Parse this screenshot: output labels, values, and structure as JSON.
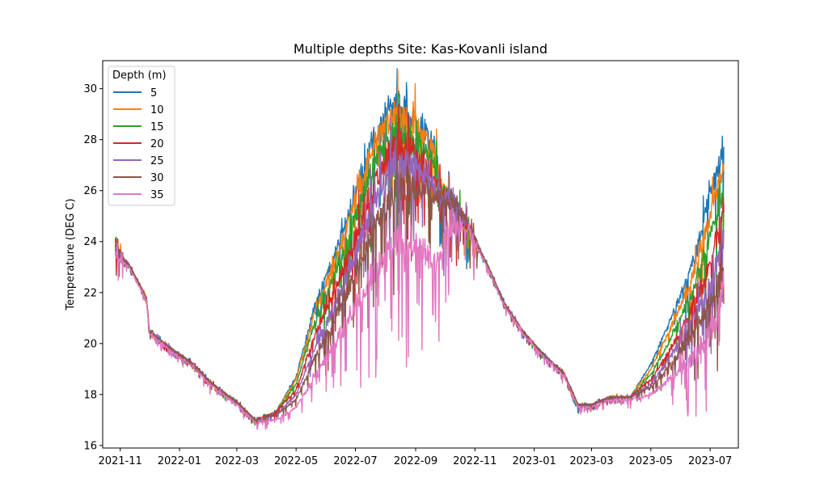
{
  "chart_data": {
    "type": "line",
    "title": "Multiple depths Site: Kas-Kovanli island",
    "xlabel": "",
    "ylabel": "Temperature (DEG C)",
    "xlim": [
      "2021-10-14",
      "2023-07-30"
    ],
    "ylim": [
      15.9,
      31.1
    ],
    "yticks": [
      16,
      18,
      20,
      22,
      24,
      26,
      28,
      30
    ],
    "xticks": [
      "2021-11",
      "2022-01",
      "2022-03",
      "2022-05",
      "2022-07",
      "2022-09",
      "2022-11",
      "2023-01",
      "2023-03",
      "2023-05",
      "2023-07"
    ],
    "grid": false,
    "legend": {
      "title": "Depth (m)",
      "placement": "top-left"
    },
    "series": [
      {
        "name": "5",
        "color": "#1f77b4",
        "amp": 1.0,
        "points": [
          [
            "2021-10-27",
            23.7
          ],
          [
            "2021-11-10",
            23.1
          ],
          [
            "2021-11-28",
            21.8
          ],
          [
            "2021-12-01",
            20.5
          ],
          [
            "2021-12-20",
            19.9
          ],
          [
            "2022-01-15",
            19.2
          ],
          [
            "2022-02-01",
            18.5
          ],
          [
            "2022-03-01",
            17.7
          ],
          [
            "2022-03-20",
            17.0
          ],
          [
            "2022-04-10",
            17.3
          ],
          [
            "2022-05-01",
            18.7
          ],
          [
            "2022-05-20",
            21.5
          ],
          [
            "2022-06-10",
            23.5
          ],
          [
            "2022-07-01",
            26.0
          ],
          [
            "2022-07-20",
            28.2
          ],
          [
            "2022-08-10",
            29.5
          ],
          [
            "2022-08-25",
            29.0
          ],
          [
            "2022-09-10",
            28.5
          ],
          [
            "2022-09-23",
            27.5
          ],
          [
            "2022-09-28",
            26.0
          ],
          [
            "2022-10-10",
            25.6
          ],
          [
            "2022-10-25",
            24.6
          ],
          [
            "2022-11-15",
            23.0
          ],
          [
            "2022-12-01",
            21.6
          ],
          [
            "2022-12-20",
            20.5
          ],
          [
            "2023-01-10",
            19.6
          ],
          [
            "2023-02-01",
            18.8
          ],
          [
            "2023-02-15",
            17.5
          ],
          [
            "2023-03-01",
            17.6
          ],
          [
            "2023-03-20",
            17.9
          ],
          [
            "2023-04-10",
            17.9
          ],
          [
            "2023-05-01",
            19.2
          ],
          [
            "2023-05-20",
            20.8
          ],
          [
            "2023-06-10",
            22.8
          ],
          [
            "2023-06-25",
            25.0
          ],
          [
            "2023-07-10",
            27.0
          ],
          [
            "2023-07-15",
            27.5
          ]
        ]
      },
      {
        "name": "10",
        "color": "#ff7f0e",
        "amp": 0.95,
        "points": [
          [
            "2021-10-27",
            23.7
          ],
          [
            "2021-11-10",
            23.1
          ],
          [
            "2021-11-28",
            21.8
          ],
          [
            "2021-12-01",
            20.5
          ],
          [
            "2021-12-20",
            19.9
          ],
          [
            "2022-01-15",
            19.2
          ],
          [
            "2022-02-01",
            18.5
          ],
          [
            "2022-03-01",
            17.7
          ],
          [
            "2022-03-20",
            17.0
          ],
          [
            "2022-04-10",
            17.3
          ],
          [
            "2022-05-01",
            18.6
          ],
          [
            "2022-05-20",
            21.2
          ],
          [
            "2022-06-10",
            23.2
          ],
          [
            "2022-07-01",
            25.7
          ],
          [
            "2022-07-20",
            27.8
          ],
          [
            "2022-08-10",
            29.0
          ],
          [
            "2022-08-25",
            28.7
          ],
          [
            "2022-09-10",
            28.2
          ],
          [
            "2022-09-23",
            27.2
          ],
          [
            "2022-09-28",
            26.0
          ],
          [
            "2022-10-10",
            25.6
          ],
          [
            "2022-10-25",
            24.6
          ],
          [
            "2022-11-15",
            23.0
          ],
          [
            "2022-12-01",
            21.6
          ],
          [
            "2022-12-20",
            20.5
          ],
          [
            "2023-01-10",
            19.6
          ],
          [
            "2023-02-01",
            18.8
          ],
          [
            "2023-02-15",
            17.6
          ],
          [
            "2023-03-01",
            17.6
          ],
          [
            "2023-03-20",
            17.9
          ],
          [
            "2023-04-10",
            17.9
          ],
          [
            "2023-05-01",
            19.0
          ],
          [
            "2023-05-20",
            20.5
          ],
          [
            "2023-06-10",
            22.3
          ],
          [
            "2023-06-25",
            24.2
          ],
          [
            "2023-07-10",
            26.3
          ],
          [
            "2023-07-15",
            26.8
          ]
        ]
      },
      {
        "name": "15",
        "color": "#2ca02c",
        "amp": 0.95,
        "points": [
          [
            "2021-10-27",
            23.7
          ],
          [
            "2021-11-10",
            23.1
          ],
          [
            "2021-11-28",
            21.8
          ],
          [
            "2021-12-01",
            20.5
          ],
          [
            "2021-12-20",
            19.9
          ],
          [
            "2022-01-15",
            19.2
          ],
          [
            "2022-02-01",
            18.5
          ],
          [
            "2022-03-01",
            17.7
          ],
          [
            "2022-03-20",
            17.0
          ],
          [
            "2022-04-10",
            17.3
          ],
          [
            "2022-05-01",
            18.4
          ],
          [
            "2022-05-20",
            20.8
          ],
          [
            "2022-06-10",
            22.7
          ],
          [
            "2022-07-01",
            25.0
          ],
          [
            "2022-07-20",
            27.0
          ],
          [
            "2022-08-10",
            28.5
          ],
          [
            "2022-08-25",
            28.2
          ],
          [
            "2022-09-10",
            27.7
          ],
          [
            "2022-09-23",
            26.8
          ],
          [
            "2022-09-28",
            26.0
          ],
          [
            "2022-10-10",
            25.6
          ],
          [
            "2022-10-25",
            24.6
          ],
          [
            "2022-11-15",
            23.0
          ],
          [
            "2022-12-01",
            21.6
          ],
          [
            "2022-12-20",
            20.5
          ],
          [
            "2023-01-10",
            19.6
          ],
          [
            "2023-02-01",
            18.8
          ],
          [
            "2023-02-15",
            17.6
          ],
          [
            "2023-03-01",
            17.6
          ],
          [
            "2023-03-20",
            17.9
          ],
          [
            "2023-04-10",
            17.9
          ],
          [
            "2023-05-01",
            18.8
          ],
          [
            "2023-05-20",
            20.1
          ],
          [
            "2023-06-10",
            21.8
          ],
          [
            "2023-06-25",
            23.4
          ],
          [
            "2023-07-10",
            25.3
          ],
          [
            "2023-07-15",
            25.8
          ]
        ]
      },
      {
        "name": "20",
        "color": "#d62728",
        "amp": 1.0,
        "points": [
          [
            "2021-10-27",
            23.7
          ],
          [
            "2021-11-10",
            23.1
          ],
          [
            "2021-11-28",
            21.8
          ],
          [
            "2021-12-01",
            20.5
          ],
          [
            "2021-12-20",
            19.9
          ],
          [
            "2022-01-15",
            19.2
          ],
          [
            "2022-02-01",
            18.5
          ],
          [
            "2022-03-01",
            17.7
          ],
          [
            "2022-03-20",
            17.0
          ],
          [
            "2022-04-10",
            17.3
          ],
          [
            "2022-05-01",
            18.2
          ],
          [
            "2022-05-20",
            20.3
          ],
          [
            "2022-06-10",
            22.1
          ],
          [
            "2022-07-01",
            24.3
          ],
          [
            "2022-07-20",
            26.3
          ],
          [
            "2022-08-10",
            27.8
          ],
          [
            "2022-08-25",
            27.7
          ],
          [
            "2022-09-10",
            27.2
          ],
          [
            "2022-09-23",
            26.4
          ],
          [
            "2022-09-28",
            25.9
          ],
          [
            "2022-10-10",
            25.6
          ],
          [
            "2022-10-25",
            24.6
          ],
          [
            "2022-11-15",
            23.0
          ],
          [
            "2022-12-01",
            21.6
          ],
          [
            "2022-12-20",
            20.5
          ],
          [
            "2023-01-10",
            19.6
          ],
          [
            "2023-02-01",
            18.8
          ],
          [
            "2023-02-15",
            17.6
          ],
          [
            "2023-03-01",
            17.6
          ],
          [
            "2023-03-20",
            17.9
          ],
          [
            "2023-04-10",
            17.9
          ],
          [
            "2023-05-01",
            18.6
          ],
          [
            "2023-05-20",
            19.7
          ],
          [
            "2023-06-10",
            21.2
          ],
          [
            "2023-06-25",
            22.5
          ],
          [
            "2023-07-10",
            24.5
          ],
          [
            "2023-07-15",
            25.5
          ]
        ]
      },
      {
        "name": "25",
        "color": "#9467bd",
        "amp": 1.05,
        "points": [
          [
            "2021-10-27",
            23.7
          ],
          [
            "2021-11-10",
            23.1
          ],
          [
            "2021-11-28",
            21.8
          ],
          [
            "2021-12-01",
            20.5
          ],
          [
            "2021-12-20",
            19.9
          ],
          [
            "2022-01-15",
            19.2
          ],
          [
            "2022-02-01",
            18.5
          ],
          [
            "2022-03-01",
            17.7
          ],
          [
            "2022-03-20",
            17.0
          ],
          [
            "2022-04-10",
            17.2
          ],
          [
            "2022-05-01",
            18.0
          ],
          [
            "2022-05-20",
            19.8
          ],
          [
            "2022-06-10",
            21.5
          ],
          [
            "2022-07-01",
            23.5
          ],
          [
            "2022-07-20",
            25.5
          ],
          [
            "2022-08-10",
            27.0
          ],
          [
            "2022-08-25",
            27.0
          ],
          [
            "2022-09-10",
            26.7
          ],
          [
            "2022-09-23",
            26.0
          ],
          [
            "2022-09-28",
            25.8
          ],
          [
            "2022-10-10",
            25.6
          ],
          [
            "2022-10-25",
            24.6
          ],
          [
            "2022-11-15",
            23.0
          ],
          [
            "2022-12-01",
            21.6
          ],
          [
            "2022-12-20",
            20.5
          ],
          [
            "2023-01-10",
            19.6
          ],
          [
            "2023-02-01",
            18.8
          ],
          [
            "2023-02-15",
            17.6
          ],
          [
            "2023-03-01",
            17.6
          ],
          [
            "2023-03-20",
            17.9
          ],
          [
            "2023-04-10",
            17.9
          ],
          [
            "2023-05-01",
            18.4
          ],
          [
            "2023-05-20",
            19.4
          ],
          [
            "2023-06-10",
            20.7
          ],
          [
            "2023-06-25",
            21.8
          ],
          [
            "2023-07-10",
            23.4
          ],
          [
            "2023-07-15",
            24.2
          ]
        ]
      },
      {
        "name": "30",
        "color": "#8c564b",
        "amp": 1.1,
        "points": [
          [
            "2021-10-27",
            23.7
          ],
          [
            "2021-11-10",
            23.1
          ],
          [
            "2021-11-28",
            21.8
          ],
          [
            "2021-12-01",
            20.5
          ],
          [
            "2021-12-20",
            19.9
          ],
          [
            "2022-01-15",
            19.2
          ],
          [
            "2022-02-01",
            18.5
          ],
          [
            "2022-03-01",
            17.7
          ],
          [
            "2022-03-20",
            17.0
          ],
          [
            "2022-04-10",
            17.2
          ],
          [
            "2022-05-01",
            17.8
          ],
          [
            "2022-05-20",
            19.4
          ],
          [
            "2022-06-10",
            21.0
          ],
          [
            "2022-07-01",
            22.8
          ],
          [
            "2022-07-20",
            24.6
          ],
          [
            "2022-08-10",
            26.1
          ],
          [
            "2022-08-25",
            26.3
          ],
          [
            "2022-09-10",
            26.1
          ],
          [
            "2022-09-23",
            25.7
          ],
          [
            "2022-09-28",
            25.7
          ],
          [
            "2022-10-10",
            25.6
          ],
          [
            "2022-10-25",
            24.6
          ],
          [
            "2022-11-15",
            23.0
          ],
          [
            "2022-12-01",
            21.6
          ],
          [
            "2022-12-20",
            20.5
          ],
          [
            "2023-01-10",
            19.6
          ],
          [
            "2023-02-01",
            18.8
          ],
          [
            "2023-02-15",
            17.6
          ],
          [
            "2023-03-01",
            17.6
          ],
          [
            "2023-03-20",
            17.9
          ],
          [
            "2023-04-10",
            17.9
          ],
          [
            "2023-05-01",
            18.3
          ],
          [
            "2023-05-20",
            19.1
          ],
          [
            "2023-06-10",
            20.2
          ],
          [
            "2023-06-25",
            21.2
          ],
          [
            "2023-07-10",
            22.6
          ],
          [
            "2023-07-15",
            23.5
          ]
        ]
      },
      {
        "name": "35",
        "color": "#e377c2",
        "amp": 1.25,
        "points": [
          [
            "2021-10-27",
            23.6
          ],
          [
            "2021-11-10",
            23.0
          ],
          [
            "2021-11-28",
            21.7
          ],
          [
            "2021-12-01",
            20.4
          ],
          [
            "2021-12-20",
            19.8
          ],
          [
            "2022-01-15",
            19.1
          ],
          [
            "2022-02-01",
            18.4
          ],
          [
            "2022-03-01",
            17.6
          ],
          [
            "2022-03-20",
            16.9
          ],
          [
            "2022-04-10",
            17.0
          ],
          [
            "2022-05-01",
            17.5
          ],
          [
            "2022-05-20",
            18.7
          ],
          [
            "2022-06-10",
            20.0
          ],
          [
            "2022-07-01",
            21.5
          ],
          [
            "2022-07-20",
            22.8
          ],
          [
            "2022-08-10",
            24.0
          ],
          [
            "2022-08-25",
            24.0
          ],
          [
            "2022-09-10",
            23.6
          ],
          [
            "2022-09-23",
            23.2
          ],
          [
            "2022-09-28",
            23.8
          ],
          [
            "2022-10-10",
            24.8
          ],
          [
            "2022-10-25",
            24.5
          ],
          [
            "2022-11-15",
            22.9
          ],
          [
            "2022-12-01",
            21.5
          ],
          [
            "2022-12-20",
            20.4
          ],
          [
            "2023-01-10",
            19.5
          ],
          [
            "2023-02-01",
            18.7
          ],
          [
            "2023-02-15",
            17.5
          ],
          [
            "2023-03-01",
            17.5
          ],
          [
            "2023-03-20",
            17.8
          ],
          [
            "2023-04-10",
            17.8
          ],
          [
            "2023-05-01",
            18.0
          ],
          [
            "2023-05-20",
            18.6
          ],
          [
            "2023-06-10",
            19.3
          ],
          [
            "2023-06-25",
            20.0
          ],
          [
            "2023-07-10",
            21.2
          ],
          [
            "2023-07-15",
            22.5
          ]
        ]
      }
    ]
  }
}
